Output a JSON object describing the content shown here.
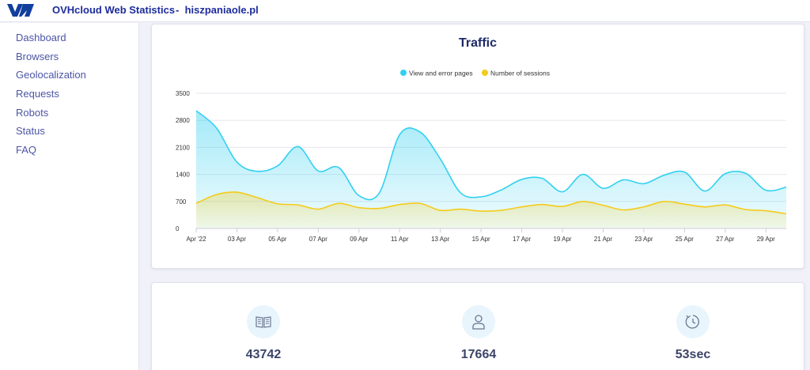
{
  "header": {
    "app_title": "OVHcloud Web Statistics",
    "separator": "-",
    "site": "hiszpaniaole.pl",
    "logo_icon": "ovh-logo-icon",
    "brand_color": "#123f9d"
  },
  "sidebar": {
    "items": [
      {
        "label": "Dashboard"
      },
      {
        "label": "Browsers"
      },
      {
        "label": "Geolocalization"
      },
      {
        "label": "Requests"
      },
      {
        "label": "Robots"
      },
      {
        "label": "Status"
      },
      {
        "label": "FAQ"
      }
    ]
  },
  "chart_data": {
    "type": "area",
    "title": "Traffic",
    "x": [
      "Apr '22",
      "02 Apr",
      "03 Apr",
      "04 Apr",
      "05 Apr",
      "06 Apr",
      "07 Apr",
      "08 Apr",
      "09 Apr",
      "10 Apr",
      "11 Apr",
      "12 Apr",
      "13 Apr",
      "14 Apr",
      "15 Apr",
      "16 Apr",
      "17 Apr",
      "18 Apr",
      "19 Apr",
      "20 Apr",
      "21 Apr",
      "22 Apr",
      "23 Apr",
      "24 Apr",
      "25 Apr",
      "26 Apr",
      "27 Apr",
      "28 Apr",
      "29 Apr",
      "30 Apr"
    ],
    "tick_labels": [
      "Apr '22",
      "03 Apr",
      "05 Apr",
      "07 Apr",
      "09 Apr",
      "11 Apr",
      "13 Apr",
      "15 Apr",
      "17 Apr",
      "19 Apr",
      "21 Apr",
      "23 Apr",
      "25 Apr",
      "27 Apr",
      "29 Apr"
    ],
    "y_ticks": [
      0,
      700,
      1400,
      2100,
      2800,
      3500
    ],
    "ylim": [
      0,
      3500
    ],
    "grid": true,
    "legend_position": "top-center",
    "series": [
      {
        "name": "View and error pages",
        "color": "#33d0f0",
        "values": [
          3050,
          2600,
          1720,
          1480,
          1620,
          2120,
          1490,
          1580,
          850,
          920,
          2430,
          2500,
          1800,
          920,
          820,
          1000,
          1270,
          1300,
          950,
          1400,
          1040,
          1260,
          1160,
          1380,
          1460,
          970,
          1420,
          1430,
          990,
          1070
        ]
      },
      {
        "name": "Number of sessions",
        "color": "#f5cb1a",
        "values": [
          650,
          880,
          940,
          800,
          640,
          610,
          500,
          650,
          540,
          520,
          620,
          650,
          470,
          500,
          450,
          470,
          560,
          620,
          570,
          700,
          600,
          480,
          560,
          700,
          630,
          560,
          610,
          490,
          460,
          380
        ]
      }
    ]
  },
  "stats": [
    {
      "icon": "book-icon",
      "value": "43742"
    },
    {
      "icon": "user-icon",
      "value": "17664"
    },
    {
      "icon": "clock-icon",
      "value": "53sec"
    }
  ]
}
